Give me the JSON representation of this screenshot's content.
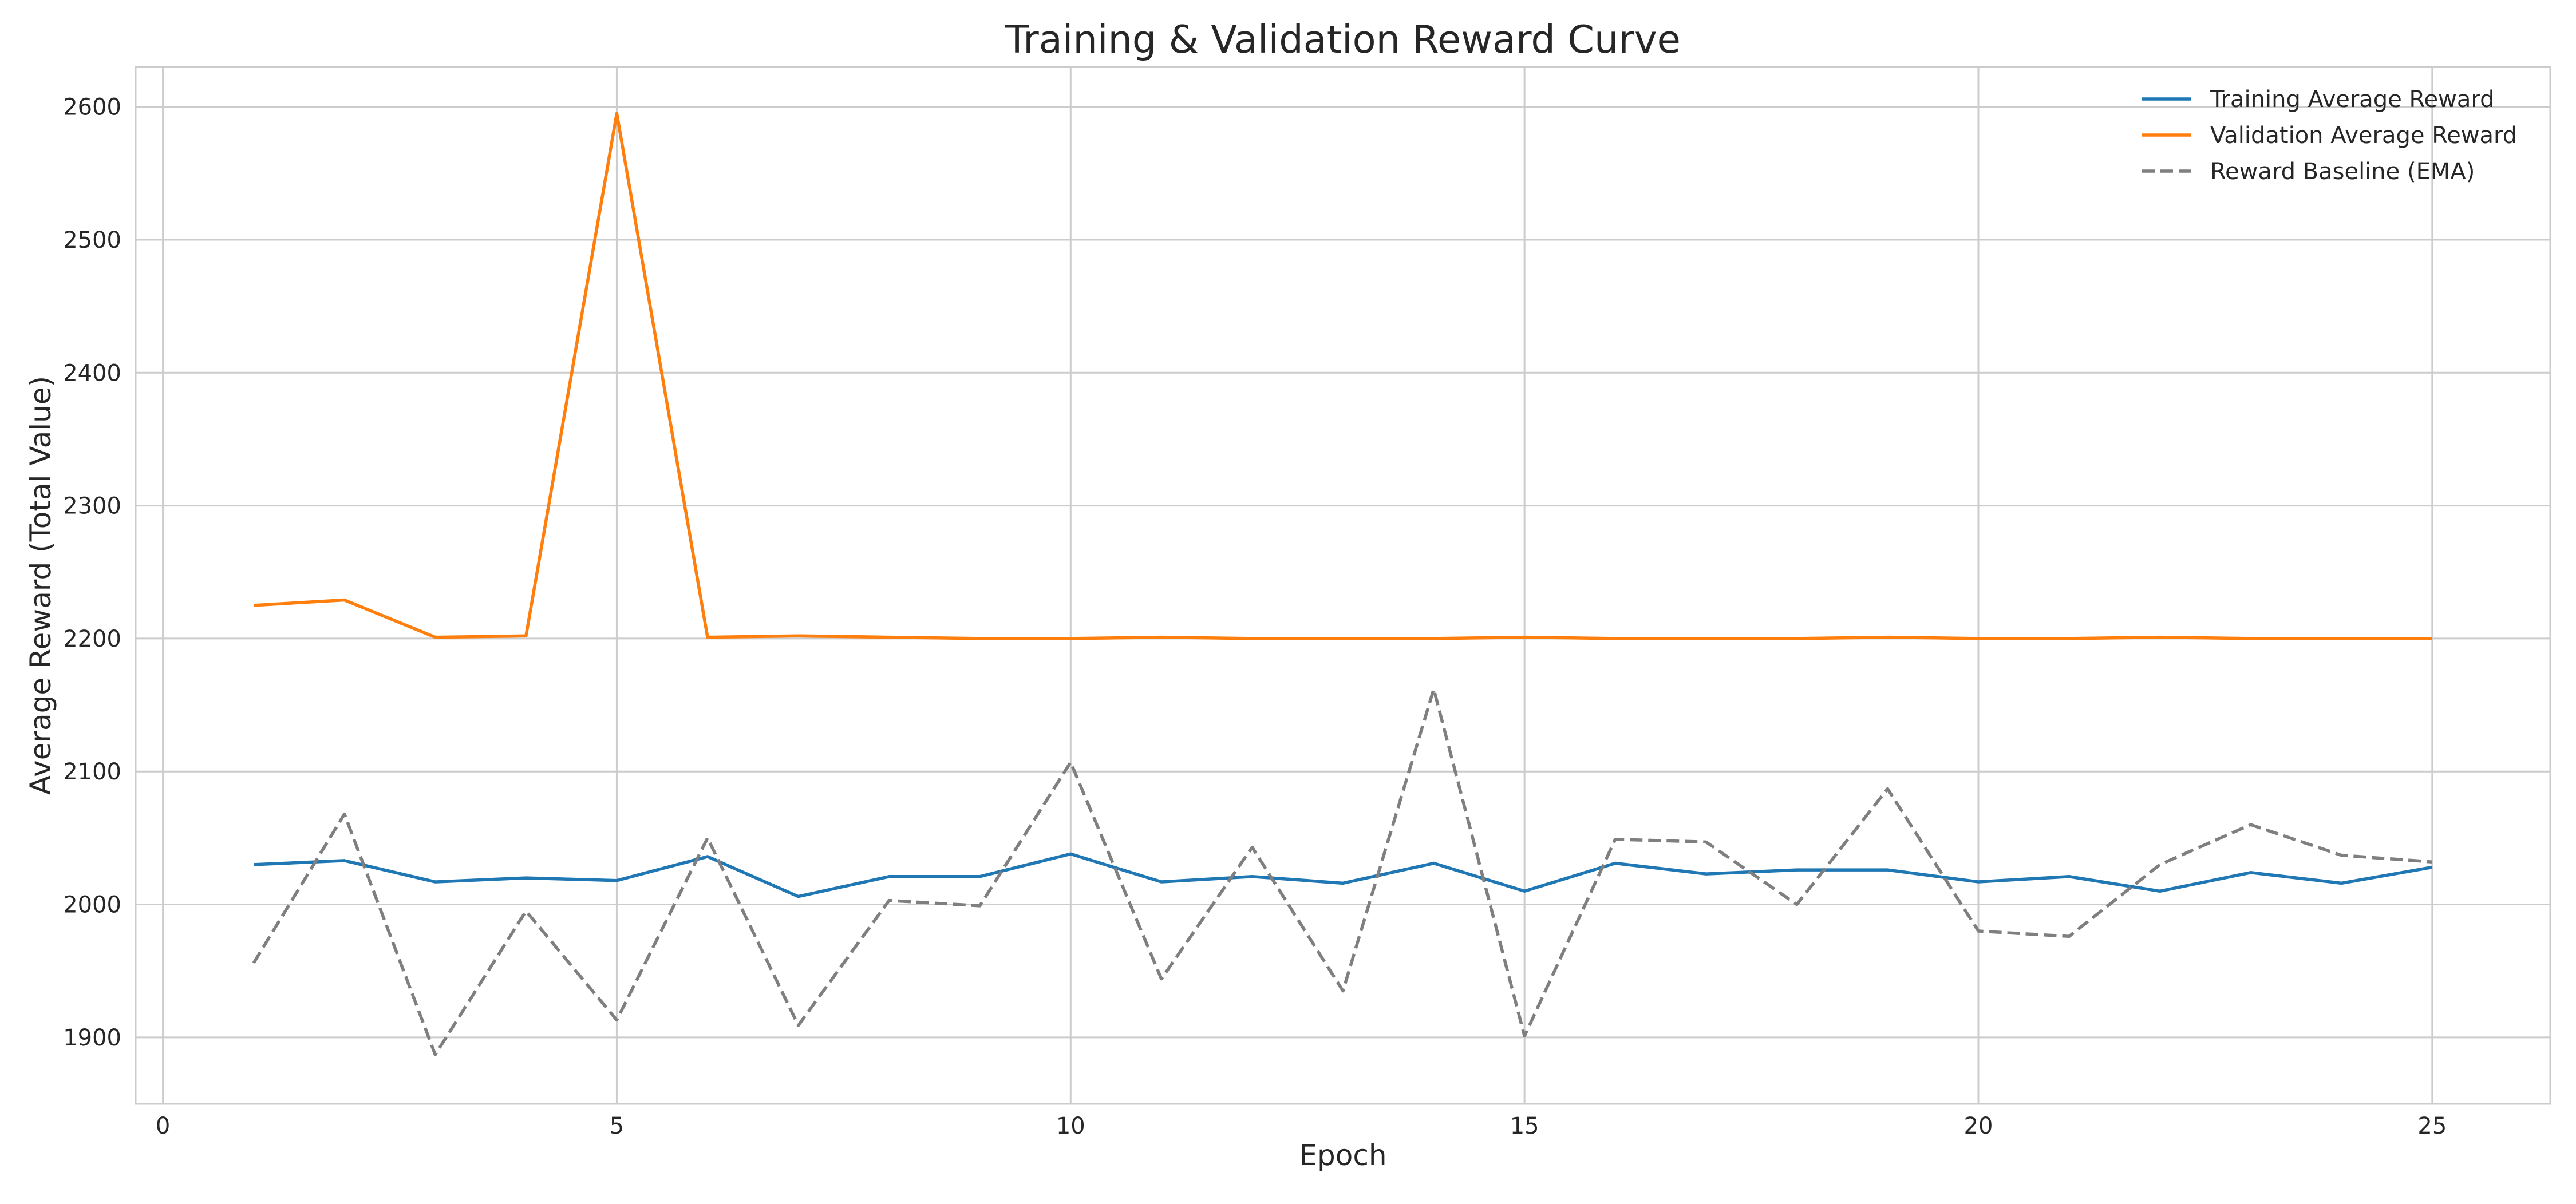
{
  "chart_data": {
    "type": "line",
    "title": "Training & Validation Reward Curve",
    "xlabel": "Epoch",
    "ylabel": "Average Reward (Total Value)",
    "xlim": [
      -0.3,
      26.3
    ],
    "ylim": [
      1850,
      2630
    ],
    "xticks": [
      0,
      5,
      10,
      15,
      20,
      25
    ],
    "yticks": [
      1900,
      2000,
      2100,
      2200,
      2300,
      2400,
      2500,
      2600
    ],
    "grid": true,
    "legend_position": "top-right",
    "x": [
      1,
      2,
      3,
      4,
      5,
      6,
      7,
      8,
      9,
      10,
      11,
      12,
      13,
      14,
      15,
      16,
      17,
      18,
      19,
      20,
      21,
      22,
      23,
      24,
      25
    ],
    "series": [
      {
        "name": "Training Average Reward",
        "color": "#1f77b4",
        "style": "solid",
        "values": [
          2030,
          2033,
          2017,
          2020,
          2018,
          2036,
          2006,
          2021,
          2021,
          2038,
          2017,
          2021,
          2016,
          2031,
          2010,
          2031,
          2023,
          2026,
          2026,
          2017,
          2021,
          2010,
          2024,
          2016,
          2028
        ]
      },
      {
        "name": "Validation Average Reward",
        "color": "#ff7f0e",
        "style": "solid",
        "values": [
          2225,
          2229,
          2201,
          2202,
          2595,
          2201,
          2202,
          2201,
          2200,
          2200,
          2201,
          2200,
          2200,
          2200,
          2201,
          2200,
          2200,
          2200,
          2201,
          2200,
          2200,
          2201,
          2200,
          2200,
          2200
        ]
      },
      {
        "name": "Reward Baseline (EMA)",
        "color": "#7f7f7f",
        "style": "dashed",
        "values": [
          1956,
          2068,
          1887,
          1995,
          1913,
          2050,
          1909,
          2003,
          1999,
          2107,
          1944,
          2043,
          1935,
          2162,
          1901,
          2049,
          2047,
          2000,
          2087,
          1980,
          1976,
          2030,
          2060,
          2037,
          2032
        ]
      }
    ]
  }
}
